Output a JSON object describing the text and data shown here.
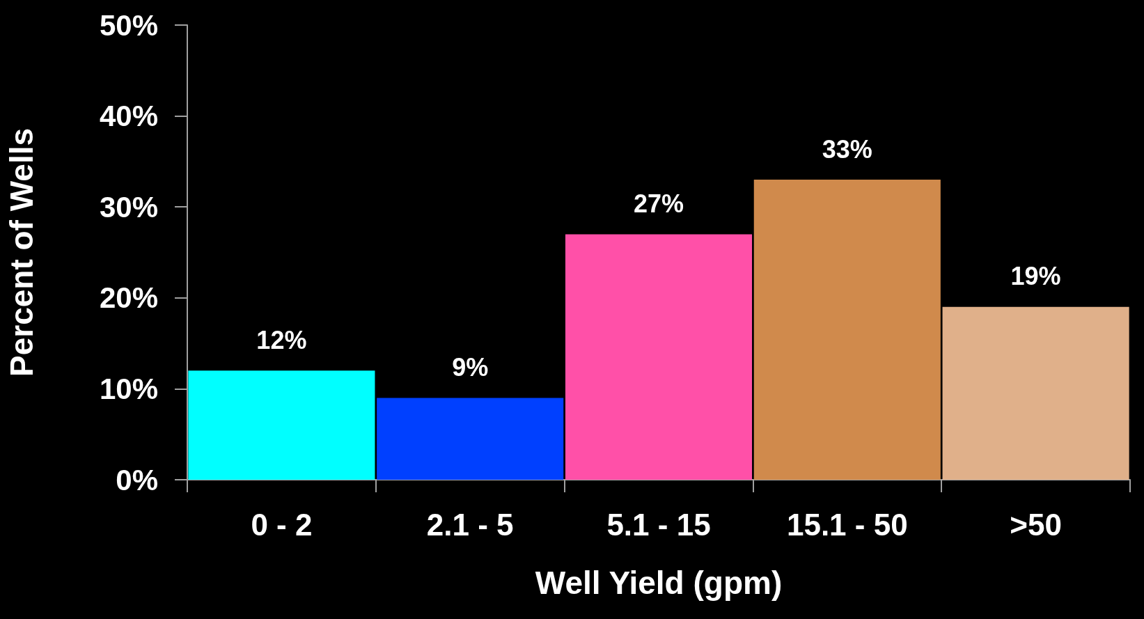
{
  "chart_data": {
    "type": "bar",
    "xlabel": "Well Yield (gpm)",
    "ylabel": "Percent of Wells",
    "categories": [
      "0 - 2",
      "2.1 - 5",
      "5.1 - 15",
      "15.1 - 50",
      ">50"
    ],
    "values": [
      12,
      9,
      27,
      33,
      19
    ],
    "value_labels": [
      "12%",
      "9%",
      "27%",
      "33%",
      "19%"
    ],
    "colors": [
      "#00ffff",
      "#0040ff",
      "#ff50a8",
      "#d08a4c",
      "#e0b08a"
    ],
    "ylim": [
      0,
      50
    ],
    "yticks": [
      {
        "value": 0,
        "label": "0%"
      },
      {
        "value": 10,
        "label": "10%"
      },
      {
        "value": 20,
        "label": "20%"
      },
      {
        "value": 30,
        "label": "30%"
      },
      {
        "value": 40,
        "label": "40%"
      },
      {
        "value": 50,
        "label": "50%"
      }
    ],
    "grid": false
  }
}
